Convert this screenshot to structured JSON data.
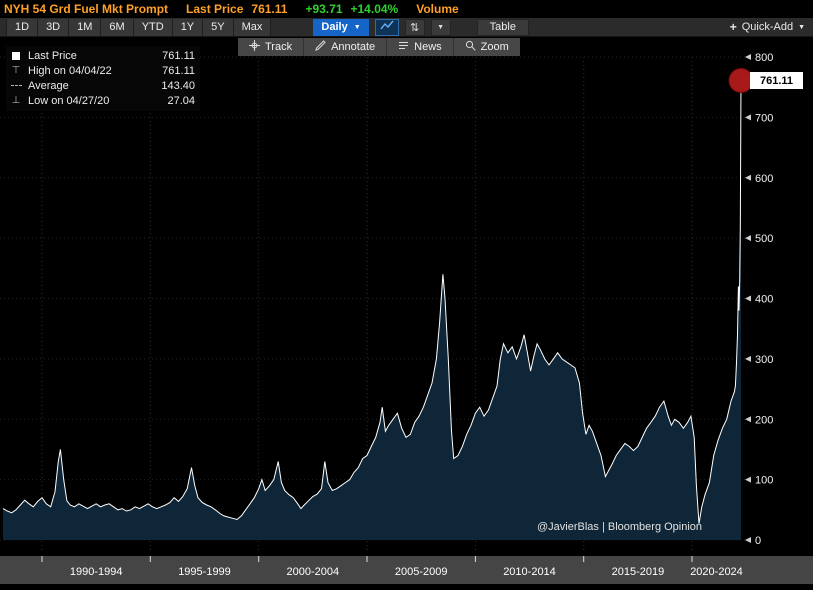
{
  "title_bar": {
    "security": "NYH 54 Grd Fuel Mkt Prompt",
    "last_price_label": "Last Price",
    "last_price": "761.11",
    "change": "+93.71",
    "change_pct": "+14.04%",
    "volume_label": "Volume"
  },
  "toolbar": {
    "periods": [
      "1D",
      "3D",
      "1M",
      "6M",
      "YTD",
      "1Y",
      "5Y",
      "Max"
    ],
    "frequency": "Daily",
    "table_label": "Table",
    "quick_add_label": "Quick-Add"
  },
  "chart_toolbar": {
    "buttons": [
      {
        "key": "track",
        "icon": "track-crosshair-icon",
        "label": "Track"
      },
      {
        "key": "annotate",
        "icon": "annotate-pencil-icon",
        "label": "Annotate"
      },
      {
        "key": "news",
        "icon": "news-lines-icon",
        "label": "News"
      },
      {
        "key": "zoom",
        "icon": "zoom-magnifier-icon",
        "label": "Zoom"
      }
    ]
  },
  "legend": {
    "rows": [
      {
        "icon": "swatch",
        "label": "Last Price",
        "value": "761.11"
      },
      {
        "icon": "high",
        "label": "High on 04/04/22",
        "value": "761.11"
      },
      {
        "icon": "average",
        "label": "Average",
        "value": "143.40"
      },
      {
        "icon": "low",
        "label": "Low on 04/27/20",
        "value": "27.04"
      }
    ]
  },
  "attribution": "@JavierBlas | Bloomberg Opinion",
  "axis_price_label": "761.11",
  "colors": {
    "amber": "#ffa028",
    "green": "#2fd12f",
    "blue": "#1565c8"
  },
  "chart_data": {
    "type": "area",
    "title": "NYH 54 Grd Fuel Mkt Prompt - Last Price",
    "xlabel": "",
    "ylabel": "Price",
    "ylim": [
      0,
      800
    ],
    "y_ticks": [
      0,
      100,
      200,
      300,
      400,
      500,
      600,
      700,
      800
    ],
    "x_range": [
      1988.2,
      2022.26
    ],
    "x_gridlines": [
      1990,
      1995,
      2000,
      2005,
      2010,
      2015,
      2020
    ],
    "groups": [
      {
        "label": "1990-1994",
        "start": 1990,
        "end": 1995
      },
      {
        "label": "1995-1999",
        "start": 1995,
        "end": 2000
      },
      {
        "label": "2000-2004",
        "start": 2000,
        "end": 2005
      },
      {
        "label": "2005-2009",
        "start": 2005,
        "end": 2010
      },
      {
        "label": "2010-2014",
        "start": 2010,
        "end": 2015
      },
      {
        "label": "2015-2019",
        "start": 2015,
        "end": 2020
      },
      {
        "label": "2020-2024",
        "start": 2020,
        "end": 2025
      }
    ],
    "legend_position": "top-left",
    "grid": true,
    "line_color": "#ffffff",
    "fill_color": "#0e2638",
    "event_dot_color": "#a81a1a",
    "points": [
      [
        1988.2,
        52
      ],
      [
        1988.4,
        48
      ],
      [
        1988.6,
        45
      ],
      [
        1988.8,
        50
      ],
      [
        1989.0,
        58
      ],
      [
        1989.2,
        66
      ],
      [
        1989.4,
        60
      ],
      [
        1989.6,
        55
      ],
      [
        1989.8,
        64
      ],
      [
        1990.0,
        70
      ],
      [
        1990.2,
        60
      ],
      [
        1990.4,
        55
      ],
      [
        1990.6,
        80
      ],
      [
        1990.75,
        130
      ],
      [
        1990.85,
        150
      ],
      [
        1991.0,
        100
      ],
      [
        1991.15,
        65
      ],
      [
        1991.3,
        58
      ],
      [
        1991.5,
        55
      ],
      [
        1991.7,
        60
      ],
      [
        1991.9,
        56
      ],
      [
        1992.1,
        52
      ],
      [
        1992.3,
        56
      ],
      [
        1992.5,
        60
      ],
      [
        1992.7,
        55
      ],
      [
        1992.9,
        58
      ],
      [
        1993.1,
        60
      ],
      [
        1993.3,
        55
      ],
      [
        1993.5,
        50
      ],
      [
        1993.7,
        52
      ],
      [
        1993.9,
        48
      ],
      [
        1994.1,
        50
      ],
      [
        1994.3,
        55
      ],
      [
        1994.5,
        52
      ],
      [
        1994.7,
        56
      ],
      [
        1994.9,
        60
      ],
      [
        1995.1,
        55
      ],
      [
        1995.3,
        52
      ],
      [
        1995.5,
        55
      ],
      [
        1995.7,
        58
      ],
      [
        1995.9,
        62
      ],
      [
        1996.1,
        70
      ],
      [
        1996.3,
        64
      ],
      [
        1996.5,
        72
      ],
      [
        1996.7,
        85
      ],
      [
        1996.9,
        120
      ],
      [
        1997.05,
        90
      ],
      [
        1997.2,
        70
      ],
      [
        1997.4,
        62
      ],
      [
        1997.6,
        58
      ],
      [
        1997.8,
        55
      ],
      [
        1998.0,
        50
      ],
      [
        1998.2,
        44
      ],
      [
        1998.4,
        40
      ],
      [
        1998.6,
        38
      ],
      [
        1998.8,
        36
      ],
      [
        1999.0,
        34
      ],
      [
        1999.2,
        40
      ],
      [
        1999.4,
        50
      ],
      [
        1999.6,
        60
      ],
      [
        1999.8,
        70
      ],
      [
        2000.0,
        85
      ],
      [
        2000.15,
        100
      ],
      [
        2000.3,
        82
      ],
      [
        2000.5,
        90
      ],
      [
        2000.7,
        100
      ],
      [
        2000.9,
        130
      ],
      [
        2001.05,
        95
      ],
      [
        2001.2,
        82
      ],
      [
        2001.4,
        75
      ],
      [
        2001.6,
        70
      ],
      [
        2001.8,
        60
      ],
      [
        2001.95,
        52
      ],
      [
        2002.1,
        58
      ],
      [
        2002.3,
        65
      ],
      [
        2002.5,
        72
      ],
      [
        2002.7,
        76
      ],
      [
        2002.9,
        85
      ],
      [
        2003.05,
        130
      ],
      [
        2003.2,
        95
      ],
      [
        2003.4,
        82
      ],
      [
        2003.6,
        85
      ],
      [
        2003.8,
        90
      ],
      [
        2004.0,
        95
      ],
      [
        2004.2,
        100
      ],
      [
        2004.4,
        112
      ],
      [
        2004.6,
        120
      ],
      [
        2004.8,
        135
      ],
      [
        2005.0,
        140
      ],
      [
        2005.2,
        155
      ],
      [
        2005.4,
        170
      ],
      [
        2005.6,
        195
      ],
      [
        2005.7,
        220
      ],
      [
        2005.85,
        180
      ],
      [
        2006.0,
        190
      ],
      [
        2006.2,
        200
      ],
      [
        2006.4,
        210
      ],
      [
        2006.6,
        185
      ],
      [
        2006.8,
        170
      ],
      [
        2007.0,
        175
      ],
      [
        2007.2,
        195
      ],
      [
        2007.4,
        205
      ],
      [
        2007.6,
        220
      ],
      [
        2007.8,
        240
      ],
      [
        2008.0,
        260
      ],
      [
        2008.2,
        300
      ],
      [
        2008.35,
        360
      ],
      [
        2008.5,
        440
      ],
      [
        2008.6,
        400
      ],
      [
        2008.75,
        300
      ],
      [
        2008.9,
        180
      ],
      [
        2009.0,
        135
      ],
      [
        2009.2,
        140
      ],
      [
        2009.4,
        155
      ],
      [
        2009.6,
        175
      ],
      [
        2009.8,
        190
      ],
      [
        2010.0,
        210
      ],
      [
        2010.2,
        220
      ],
      [
        2010.4,
        205
      ],
      [
        2010.6,
        215
      ],
      [
        2010.8,
        235
      ],
      [
        2011.0,
        255
      ],
      [
        2011.15,
        300
      ],
      [
        2011.3,
        325
      ],
      [
        2011.5,
        310
      ],
      [
        2011.7,
        320
      ],
      [
        2011.9,
        300
      ],
      [
        2012.1,
        320
      ],
      [
        2012.25,
        340
      ],
      [
        2012.4,
        310
      ],
      [
        2012.55,
        280
      ],
      [
        2012.7,
        305
      ],
      [
        2012.85,
        325
      ],
      [
        2013.0,
        315
      ],
      [
        2013.2,
        300
      ],
      [
        2013.4,
        290
      ],
      [
        2013.6,
        300
      ],
      [
        2013.8,
        310
      ],
      [
        2014.0,
        300
      ],
      [
        2014.2,
        295
      ],
      [
        2014.4,
        290
      ],
      [
        2014.6,
        285
      ],
      [
        2014.8,
        260
      ],
      [
        2014.95,
        210
      ],
      [
        2015.1,
        175
      ],
      [
        2015.25,
        190
      ],
      [
        2015.4,
        180
      ],
      [
        2015.6,
        160
      ],
      [
        2015.8,
        140
      ],
      [
        2016.0,
        105
      ],
      [
        2016.15,
        115
      ],
      [
        2016.3,
        125
      ],
      [
        2016.5,
        140
      ],
      [
        2016.7,
        150
      ],
      [
        2016.9,
        160
      ],
      [
        2017.1,
        155
      ],
      [
        2017.3,
        148
      ],
      [
        2017.5,
        155
      ],
      [
        2017.7,
        170
      ],
      [
        2017.9,
        185
      ],
      [
        2018.1,
        195
      ],
      [
        2018.3,
        205
      ],
      [
        2018.5,
        220
      ],
      [
        2018.7,
        230
      ],
      [
        2018.9,
        205
      ],
      [
        2019.05,
        190
      ],
      [
        2019.2,
        200
      ],
      [
        2019.4,
        195
      ],
      [
        2019.6,
        185
      ],
      [
        2019.8,
        195
      ],
      [
        2019.95,
        205
      ],
      [
        2020.1,
        170
      ],
      [
        2020.2,
        90
      ],
      [
        2020.32,
        27.04
      ],
      [
        2020.45,
        55
      ],
      [
        2020.6,
        75
      ],
      [
        2020.8,
        95
      ],
      [
        2021.0,
        140
      ],
      [
        2021.2,
        165
      ],
      [
        2021.4,
        185
      ],
      [
        2021.6,
        200
      ],
      [
        2021.8,
        230
      ],
      [
        2021.95,
        245
      ],
      [
        2022.0,
        255
      ],
      [
        2022.05,
        290
      ],
      [
        2022.1,
        340
      ],
      [
        2022.14,
        420
      ],
      [
        2022.17,
        380
      ],
      [
        2022.2,
        430
      ],
      [
        2022.23,
        520
      ],
      [
        2022.26,
        761.11
      ]
    ]
  }
}
